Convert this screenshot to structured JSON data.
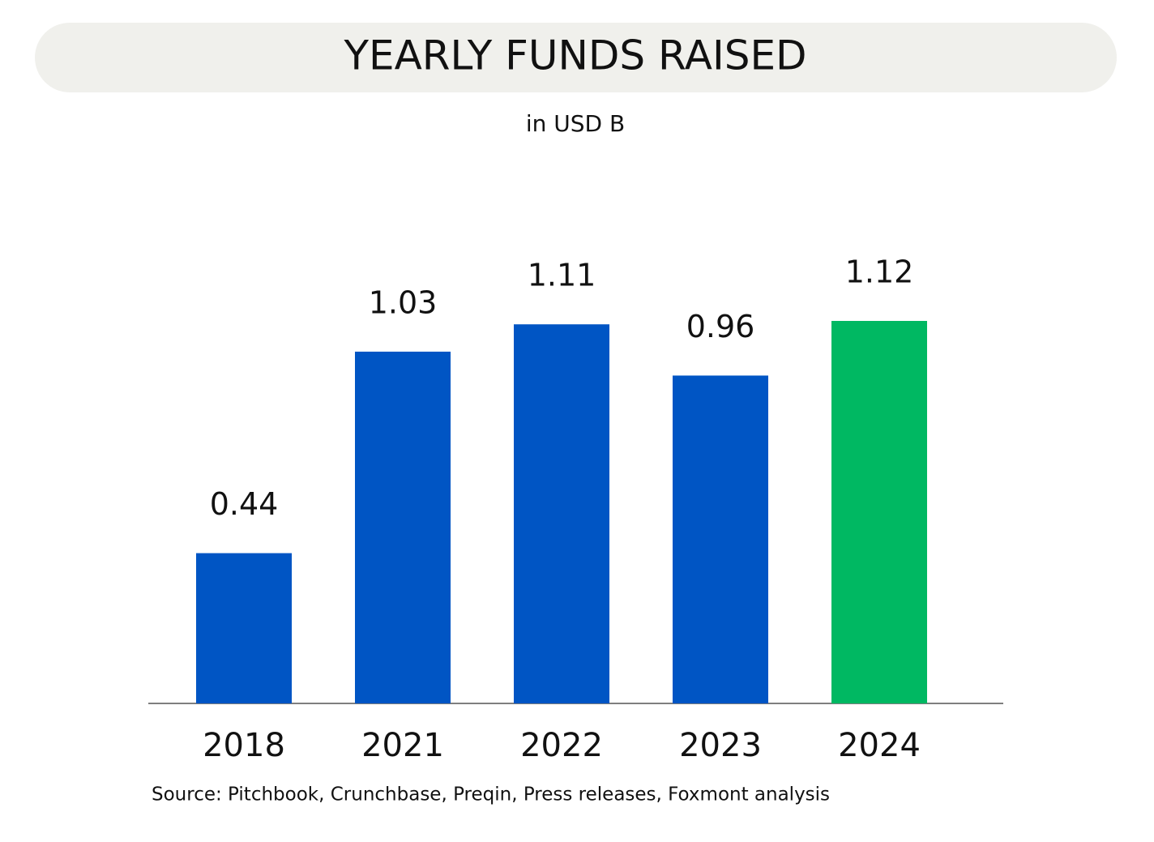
{
  "chart_data": {
    "type": "bar",
    "title": "YEARLY FUNDS RAISED",
    "subtitle": "in USD B",
    "categories": [
      "2018",
      "2021",
      "2022",
      "2023",
      "2024"
    ],
    "values": [
      0.44,
      1.03,
      1.11,
      0.96,
      1.12
    ],
    "colors": [
      "#0055c4",
      "#0055c4",
      "#0055c4",
      "#0055c4",
      "#00b862"
    ],
    "source": "Source: Pitchbook, Crunchbase, Preqin, Press releases, Foxmont analysis"
  }
}
